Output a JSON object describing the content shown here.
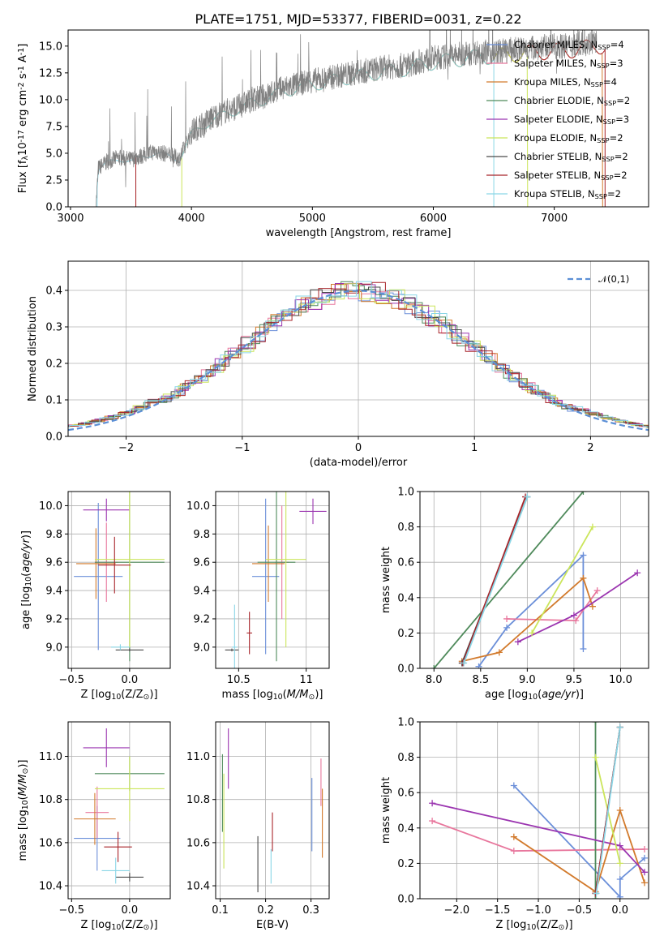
{
  "chart_data": [
    {
      "id": "spectrum",
      "type": "line",
      "title": "PLATE=1751, MJD=53377, FIBERID=0031, z=0.22",
      "xlabel": "wavelength [Angstrom, rest frame]",
      "ylabel": "Flux [f$_{\\lambda}$10$^{-17}$ erg cm$^{-2}$ s$^{-1}$ A$^{-1}$]",
      "xlim": [
        2980,
        7780
      ],
      "ylim": [
        0,
        16.5
      ],
      "xticks": [
        3000,
        4000,
        5000,
        6000,
        7000
      ],
      "yticks": [
        0.0,
        2.5,
        5.0,
        7.5,
        10.0,
        12.5,
        15.0
      ],
      "data_color": "#808080",
      "data_x": [
        3210,
        3230,
        3300,
        3400,
        3500,
        3600,
        3700,
        3800,
        3900,
        4000,
        4100,
        4200,
        4300,
        4400,
        4500,
        4600,
        4700,
        4800,
        4900,
        5000,
        5100,
        5200,
        5300,
        5400,
        5500,
        5600,
        5700,
        5800,
        5900,
        6000,
        6100,
        6200,
        6300,
        6400,
        6500,
        6600,
        6700,
        6800,
        6900,
        7000,
        7100,
        7200,
        7300,
        7350
      ],
      "data_y": [
        0.0,
        3.6,
        4.2,
        4.6,
        4.4,
        4.8,
        5.2,
        4.9,
        4.5,
        7.0,
        7.8,
        8.5,
        9.0,
        9.4,
        10.0,
        10.3,
        10.8,
        11.2,
        11.5,
        11.8,
        11.9,
        12.2,
        12.4,
        12.6,
        12.8,
        13.0,
        13.1,
        13.3,
        13.6,
        13.9,
        14.0,
        14.2,
        14.3,
        14.5,
        14.4,
        14.6,
        14.7,
        14.8,
        14.9,
        15.0,
        15.0,
        15.2,
        15.3,
        15.5
      ],
      "legend": [
        {
          "label": "Chabrier MILES, N$_{SSP}$=4",
          "color": "#6b8fd9"
        },
        {
          "label": "Salpeter MILES, N$_{SSP}$=3",
          "color": "#e8779d"
        },
        {
          "label": "Kroupa MILES, N$_{SSP}$=4",
          "color": "#d27a2c"
        },
        {
          "label": "Chabrier ELODIE, N$_{SSP}$=2",
          "color": "#4f8a5b"
        },
        {
          "label": "Salpeter ELODIE, N$_{SSP}$=3",
          "color": "#9b35b0"
        },
        {
          "label": "Kroupa ELODIE, N$_{SSP}$=2",
          "color": "#cbe55a"
        },
        {
          "label": "Chabrier STELIB, N$_{SSP}$=2",
          "color": "#4a4a4a"
        },
        {
          "label": "Salpeter STELIB, N$_{SSP}$=2",
          "color": "#a8252a"
        },
        {
          "label": "Kroupa STELIB, N$_{SSP}$=2",
          "color": "#8ad6e6"
        }
      ],
      "model_ranges": [
        {
          "color": "#d27a2c",
          "start": 3540,
          "end": 7400
        },
        {
          "color": "#a8252a",
          "start": 3540,
          "end": 7420
        },
        {
          "color": "#cbe55a",
          "start": 3920,
          "end": 6780
        },
        {
          "color": "#8ad6e6",
          "start": 3220,
          "end": 6500
        }
      ]
    },
    {
      "id": "residuals",
      "type": "step",
      "xlabel": "(data-model)/error",
      "ylabel": "Normed distribution",
      "xlim": [
        -2.5,
        2.5
      ],
      "ylim": [
        0,
        0.48
      ],
      "xticks": [
        -2,
        -1,
        0,
        1,
        2
      ],
      "xticklabels": [
        "−2",
        "−1",
        "0",
        "1",
        "2"
      ],
      "yticks": [
        0.0,
        0.1,
        0.2,
        0.3,
        0.4
      ],
      "legend": [
        {
          "label": "$\\mathcal{N}(0,1)$",
          "color": "#5b8fd6"
        }
      ]
    },
    {
      "id": "age-vs-z",
      "type": "errorbar",
      "xlabel": "Z [log$_{10}$(Z/Z$_{\\odot}$)]",
      "ylabel": "age  [log$_{10}$($age/yr$)]",
      "xlim": [
        -0.53,
        0.35
      ],
      "ylim": [
        8.85,
        10.1
      ],
      "xticks": [
        -0.5,
        0.0
      ],
      "xticklabels": [
        "−0.5",
        "0.0"
      ],
      "yticks": [
        9.0,
        9.2,
        9.4,
        9.6,
        9.8,
        10.0
      ],
      "points": [
        {
          "color": "#6b8fd9",
          "x": -0.27,
          "xerr": 0.21,
          "y": 9.5,
          "yerr": 0.52
        },
        {
          "color": "#e8779d",
          "x": -0.2,
          "xerr": 0.1,
          "y": 9.6,
          "yerr": 0.28
        },
        {
          "color": "#d27a2c",
          "x": -0.29,
          "xerr": 0.17,
          "y": 9.59,
          "yerr": 0.25
        },
        {
          "color": "#4f8a5b",
          "x": 0.0,
          "xerr": 0.3,
          "y": 9.6,
          "yerr": 0.7
        },
        {
          "color": "#9b35b0",
          "x": -0.2,
          "xerr": 0.2,
          "y": 9.97,
          "yerr": 0.08
        },
        {
          "color": "#cbe55a",
          "x": 0.0,
          "xerr": 0.3,
          "y": 9.62,
          "yerr": 0.62
        },
        {
          "color": "#4a4a4a",
          "x": 0.0,
          "xerr": 0.12,
          "y": 8.98,
          "yerr": 0.01
        },
        {
          "color": "#a8252a",
          "x": -0.13,
          "xerr": 0.14,
          "y": 9.58,
          "yerr": 0.2
        },
        {
          "color": "#8ad6e6",
          "x": -0.08,
          "xerr": 0.08,
          "y": 9.0,
          "yerr": 0.02
        }
      ]
    },
    {
      "id": "age-vs-mass",
      "type": "errorbar",
      "xlabel": "mass [log$_{10}$($M/M_{\\odot}$)]",
      "ylabel": "",
      "xlim": [
        10.33,
        11.17
      ],
      "ylim": [
        8.85,
        10.1
      ],
      "xticks": [
        10.5,
        11.0
      ],
      "yticks": [
        9.0,
        9.2,
        9.4,
        9.6,
        9.8,
        10.0
      ],
      "points": [
        {
          "color": "#6b8fd9",
          "x": 10.7,
          "xerr": 0.1,
          "y": 9.5,
          "yerr": 0.55
        },
        {
          "color": "#e8779d",
          "x": 10.82,
          "xerr": 0.05,
          "y": 9.6,
          "yerr": 0.4
        },
        {
          "color": "#d27a2c",
          "x": 10.72,
          "xerr": 0.12,
          "y": 9.59,
          "yerr": 0.27
        },
        {
          "color": "#4f8a5b",
          "x": 10.78,
          "xerr": 0.14,
          "y": 9.6,
          "yerr": 0.7
        },
        {
          "color": "#9b35b0",
          "x": 11.05,
          "xerr": 0.1,
          "y": 9.96,
          "yerr": 0.09
        },
        {
          "color": "#cbe55a",
          "x": 10.85,
          "xerr": 0.15,
          "y": 9.62,
          "yerr": 0.62
        },
        {
          "color": "#4a4a4a",
          "x": 10.45,
          "xerr": 0.05,
          "y": 8.98,
          "yerr": 0.01
        },
        {
          "color": "#a8252a",
          "x": 10.58,
          "xerr": 0.02,
          "y": 9.1,
          "yerr": 0.15
        },
        {
          "color": "#8ad6e6",
          "x": 10.47,
          "xerr": 0.02,
          "y": 9.0,
          "yerr": 0.3
        }
      ]
    },
    {
      "id": "weight-vs-age",
      "type": "line",
      "xlabel": "age  [log$_{10}$($age/yr$)]",
      "ylabel": "mass weight",
      "xlim": [
        7.85,
        10.3
      ],
      "ylim": [
        0,
        1.0
      ],
      "xticks": [
        8.0,
        8.5,
        9.0,
        9.5,
        10.0
      ],
      "yticks": [
        0.0,
        0.2,
        0.4,
        0.6,
        0.8,
        1.0
      ],
      "series": [
        {
          "color": "#6b8fd9",
          "x": [
            8.48,
            8.78,
            9.6,
            9.6
          ],
          "y": [
            0.01,
            0.23,
            0.64,
            0.11
          ]
        },
        {
          "color": "#e8779d",
          "x": [
            8.78,
            9.52,
            9.75
          ],
          "y": [
            0.28,
            0.27,
            0.44
          ]
        },
        {
          "color": "#d27a2c",
          "x": [
            8.3,
            8.7,
            9.6,
            9.7
          ],
          "y": [
            0.04,
            0.09,
            0.51,
            0.35
          ]
        },
        {
          "color": "#4f8a5b",
          "x": [
            8.0,
            9.6
          ],
          "y": [
            0.0,
            1.0
          ]
        },
        {
          "color": "#9b35b0",
          "x": [
            8.9,
            9.5,
            10.18
          ],
          "y": [
            0.15,
            0.3,
            0.54
          ]
        },
        {
          "color": "#cbe55a",
          "x": [
            9.05,
            9.7
          ],
          "y": [
            0.2,
            0.8
          ]
        },
        {
          "color": "#4a4a4a",
          "x": [
            8.3,
            9.0
          ],
          "y": [
            0.03,
            0.97
          ]
        },
        {
          "color": "#a8252a",
          "x": [
            8.31,
            8.98
          ],
          "y": [
            0.03,
            0.97
          ]
        },
        {
          "color": "#8ad6e6",
          "x": [
            8.32,
            9.0
          ],
          "y": [
            0.03,
            0.97
          ]
        }
      ]
    },
    {
      "id": "mass-vs-z",
      "type": "errorbar",
      "xlabel": "Z [log$_{10}$(Z/Z$_{\\odot}$)]",
      "ylabel": "mass [log$_{10}$($M/M_{\\odot}$)]",
      "xlim": [
        -0.53,
        0.35
      ],
      "ylim": [
        10.34,
        11.16
      ],
      "xticks": [
        -0.5,
        0.0
      ],
      "xticklabels": [
        "−0.5",
        "0.0"
      ],
      "yticks": [
        10.4,
        10.6,
        10.8,
        11.0
      ],
      "points": [
        {
          "color": "#6b8fd9",
          "x": -0.28,
          "xerr": 0.2,
          "y": 10.62,
          "yerr": 0.15
        },
        {
          "color": "#e8779d",
          "x": -0.28,
          "xerr": 0.1,
          "y": 10.74,
          "yerr": 0.12
        },
        {
          "color": "#d27a2c",
          "x": -0.3,
          "xerr": 0.18,
          "y": 10.71,
          "yerr": 0.12
        },
        {
          "color": "#4f8a5b",
          "x": 0.0,
          "xerr": 0.3,
          "y": 10.92,
          "yerr": 0.08
        },
        {
          "color": "#9b35b0",
          "x": -0.2,
          "xerr": 0.2,
          "y": 11.04,
          "yerr": 0.09
        },
        {
          "color": "#cbe55a",
          "x": 0.0,
          "xerr": 0.3,
          "y": 10.85,
          "yerr": 0.15
        },
        {
          "color": "#4a4a4a",
          "x": 0.0,
          "xerr": 0.12,
          "y": 10.44,
          "yerr": 0.02
        },
        {
          "color": "#a8252a",
          "x": -0.1,
          "xerr": 0.12,
          "y": 10.58,
          "yerr": 0.07
        },
        {
          "color": "#8ad6e6",
          "x": -0.12,
          "xerr": 0.12,
          "y": 10.47,
          "yerr": 0.06
        }
      ]
    },
    {
      "id": "mass-vs-ebv",
      "type": "errorbar",
      "xlabel": "E(B-V)",
      "ylabel": "",
      "xlim": [
        0.09,
        0.34
      ],
      "ylim": [
        10.34,
        11.16
      ],
      "xticks": [
        0.1,
        0.2,
        0.3
      ],
      "yticks": [
        10.4,
        10.6,
        10.8,
        11.0
      ],
      "points": [
        {
          "color": "#6b8fd9",
          "x": 0.302,
          "y": 10.73,
          "yerr": 0.17
        },
        {
          "color": "#e8779d",
          "x": 0.322,
          "y": 10.88,
          "yerr": 0.11
        },
        {
          "color": "#d27a2c",
          "x": 0.325,
          "y": 10.69,
          "yerr": 0.16
        },
        {
          "color": "#4f8a5b",
          "x": 0.105,
          "y": 10.83,
          "yerr": 0.18
        },
        {
          "color": "#9b35b0",
          "x": 0.118,
          "y": 10.99,
          "yerr": 0.14
        },
        {
          "color": "#cbe55a",
          "x": 0.108,
          "y": 10.7,
          "yerr": 0.22
        },
        {
          "color": "#4a4a4a",
          "x": 0.183,
          "y": 10.5,
          "yerr": 0.13
        },
        {
          "color": "#a8252a",
          "x": 0.215,
          "y": 10.65,
          "yerr": 0.09
        },
        {
          "color": "#8ad6e6",
          "x": 0.212,
          "y": 10.49,
          "yerr": 0.08
        }
      ]
    },
    {
      "id": "weight-vs-z",
      "type": "line",
      "xlabel": "Z [log$_{10}$(Z/Z$_{\\odot}$)]",
      "ylabel": "mass weight",
      "xlim": [
        -2.45,
        0.35
      ],
      "ylim": [
        0,
        1.0
      ],
      "xticks": [
        -2.0,
        -1.5,
        -1.0,
        -0.5,
        0.0
      ],
      "xticklabels": [
        "−2.0",
        "−1.5",
        "−1.0",
        "−0.5",
        "0.0"
      ],
      "yticks": [
        0.0,
        0.2,
        0.4,
        0.6,
        0.8,
        1.0
      ],
      "series": [
        {
          "color": "#6b8fd9",
          "x": [
            -1.3,
            0.0,
            0.0,
            0.3
          ],
          "y": [
            0.64,
            0.01,
            0.11,
            0.23
          ]
        },
        {
          "color": "#e8779d",
          "x": [
            -2.3,
            -1.3,
            0.3
          ],
          "y": [
            0.44,
            0.27,
            0.28
          ]
        },
        {
          "color": "#d27a2c",
          "x": [
            -1.3,
            -0.3,
            0.0,
            0.3
          ],
          "y": [
            0.35,
            0.04,
            0.5,
            0.09
          ]
        },
        {
          "color": "#4f8a5b",
          "x": [
            -0.3,
            -0.3
          ],
          "y": [
            0.0,
            1.0
          ]
        },
        {
          "color": "#9b35b0",
          "x": [
            -2.3,
            0.0,
            0.3
          ],
          "y": [
            0.54,
            0.3,
            0.15
          ]
        },
        {
          "color": "#cbe55a",
          "x": [
            -0.3,
            0.0
          ],
          "y": [
            0.8,
            0.2
          ]
        },
        {
          "color": "#4a4a4a",
          "x": [
            -0.3,
            0.0
          ],
          "y": [
            0.03,
            0.97
          ]
        },
        {
          "color": "#a8252a",
          "x": [
            -0.3,
            0.0
          ],
          "y": [
            0.03,
            0.97
          ]
        },
        {
          "color": "#8ad6e6",
          "x": [
            -0.29,
            0.0
          ],
          "y": [
            0.03,
            0.97
          ]
        }
      ]
    }
  ]
}
